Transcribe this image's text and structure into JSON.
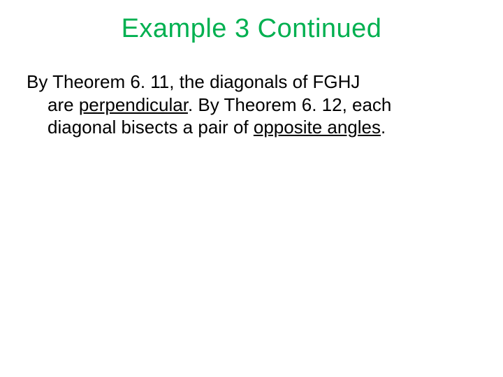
{
  "slide": {
    "title": "Example 3 Continued",
    "title_color": "#00b050",
    "body_color": "#000000",
    "background_color": "#ffffff",
    "title_fontsize": 38,
    "body_fontsize": 26,
    "body": {
      "line1_prefix": "By Theorem 6. 11, the diagonals of FGHJ",
      "line2_part1": "are ",
      "line2_underlined": "perpendicular",
      "line2_part2": ". By Theorem 6. 12, each",
      "line3_part1": "diagonal bisects a pair of ",
      "line3_underlined": "opposite angles",
      "line3_part2": "."
    }
  }
}
